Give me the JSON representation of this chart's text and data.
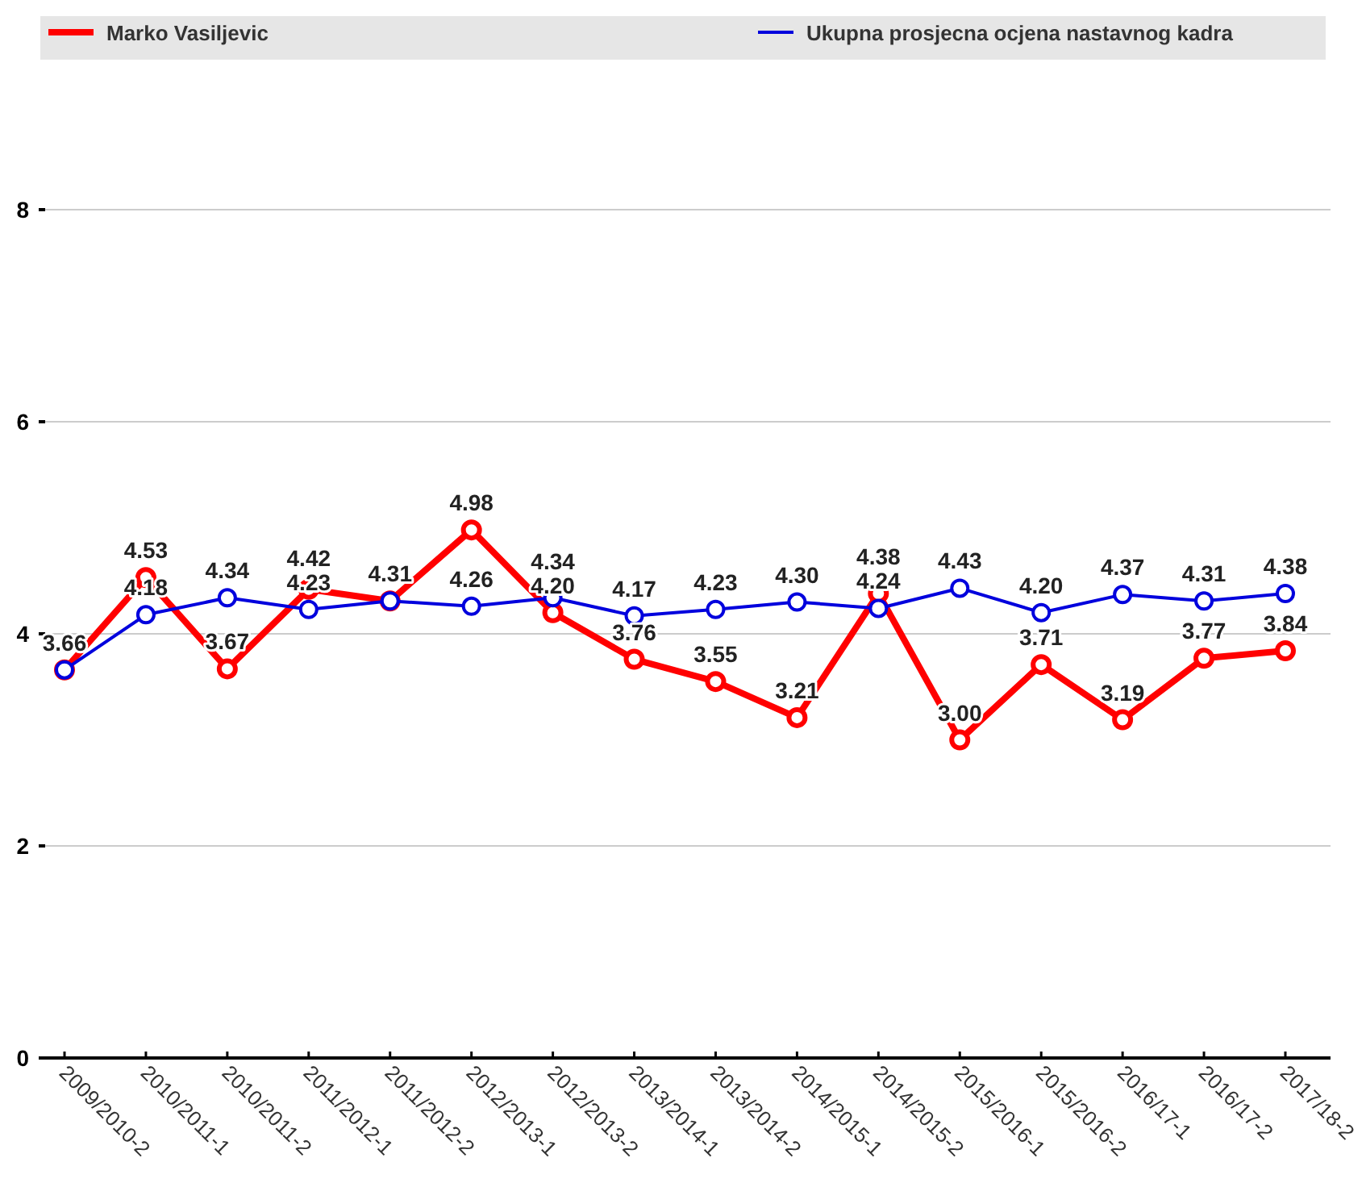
{
  "chart_data": {
    "type": "line",
    "categories": [
      "2009/2010-2",
      "2010/2011-1",
      "2010/2011-2",
      "2011/2012-1",
      "2011/2012-2",
      "2012/2013-1",
      "2012/2013-2",
      "2013/2014-1",
      "2013/2014-2",
      "2014/2015-1",
      "2014/2015-2",
      "2015/2016-1",
      "2015/2016-2",
      "2016/17-1",
      "2016/17-2",
      "2017/18-2"
    ],
    "series": [
      {
        "name": "Marko Vasiljevic",
        "color": "#ff0000",
        "values": [
          3.66,
          4.53,
          3.67,
          4.42,
          4.31,
          4.98,
          4.2,
          3.76,
          3.55,
          3.21,
          4.38,
          3.0,
          3.71,
          3.19,
          3.77,
          3.84
        ],
        "value_labels": [
          "3.66",
          "4.53",
          "3.67",
          "4.42",
          "4.31",
          "4.98",
          "4.20",
          "3.76",
          "3.55",
          "3.21",
          "4.38",
          "3.00",
          "3.71",
          "3.19",
          "3.77",
          "3.84"
        ]
      },
      {
        "name": "Ukupna prosjecna ocjena nastavnog kadra",
        "color": "#0000dd",
        "values": [
          3.66,
          4.18,
          4.34,
          4.23,
          4.31,
          4.26,
          4.34,
          4.17,
          4.23,
          4.3,
          4.24,
          4.43,
          4.2,
          4.37,
          4.31,
          4.38
        ],
        "value_labels": [
          null,
          "4.18",
          "4.34",
          "4.23",
          null,
          "4.26",
          "4.34",
          "4.17",
          "4.23",
          "4.30",
          "4.24",
          "4.43",
          "4.20",
          "4.37",
          "4.31",
          "4.38"
        ]
      }
    ],
    "ylim": [
      0,
      8
    ],
    "yticks": [
      0,
      2,
      4,
      6,
      8
    ],
    "grid": "y",
    "legend": "top",
    "marker": "circle",
    "line_style": "solid"
  }
}
